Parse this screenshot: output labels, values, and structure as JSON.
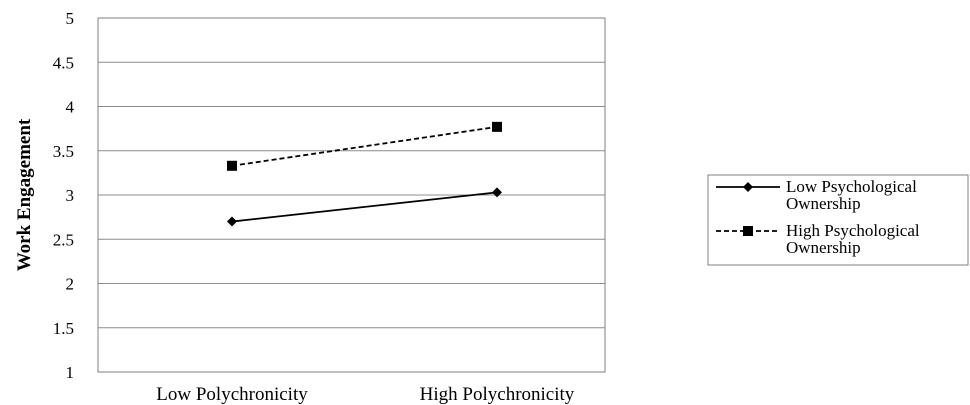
{
  "chart_data": {
    "type": "line",
    "title": "",
    "xlabel": "",
    "ylabel": "Work Engagement",
    "ylim": [
      1,
      5
    ],
    "yticks": [
      1,
      1.5,
      2,
      2.5,
      3,
      3.5,
      4,
      4.5,
      5
    ],
    "ytick_labels": [
      "1",
      "1.5",
      "2",
      "2.5",
      "3",
      "3.5",
      "4",
      "4.5",
      "5"
    ],
    "categories": [
      "Low Polychronicity",
      "High Polychronicity"
    ],
    "grid": true,
    "legend_position": "right",
    "series": [
      {
        "name": "Low Psychological Ownership",
        "name_lines": [
          "Low Psychological",
          "Ownership"
        ],
        "values": [
          2.7,
          3.03
        ],
        "line_style": "solid",
        "marker": "diamond",
        "color": "#000000"
      },
      {
        "name": "High Psychological Ownership",
        "name_lines": [
          "High Psychological",
          "Ownership"
        ],
        "values": [
          3.33,
          3.77
        ],
        "line_style": "dashed",
        "marker": "square",
        "color": "#000000"
      }
    ]
  }
}
